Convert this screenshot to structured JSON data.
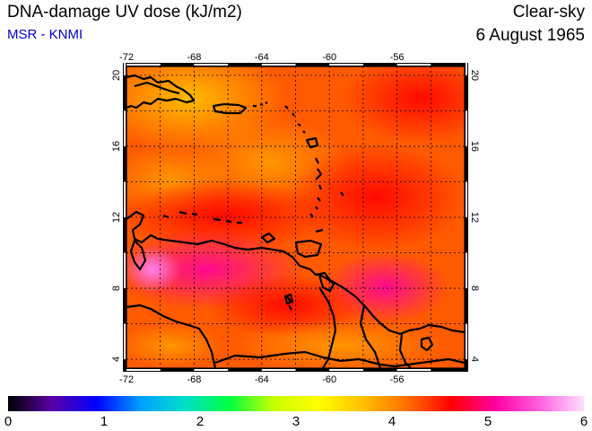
{
  "header": {
    "title": "DNA-damage UV dose (kJ/m2)",
    "subtitle": "MSR - KNMI",
    "condition": "Clear-sky",
    "date": "6 August 1965"
  },
  "map": {
    "lon_ticks": [
      "-72",
      "-68",
      "-64",
      "-60",
      "-56"
    ],
    "lat_ticks": [
      "20",
      "16",
      "12",
      "8",
      "4"
    ],
    "lon_values": [
      -72,
      -68,
      -64,
      -60,
      -56
    ],
    "lat_values": [
      20,
      16,
      12,
      8,
      4
    ],
    "lon_range": [
      -72,
      -52
    ],
    "lat_range": [
      3.5,
      20.5
    ],
    "gridlines": true,
    "land_outline_color": "#000000"
  },
  "colorbar": {
    "ticks": [
      "0",
      "1",
      "2",
      "3",
      "4",
      "5",
      "6"
    ],
    "range": [
      0,
      6
    ],
    "colors": [
      "#000000",
      "#5a00a8",
      "#0000ff",
      "#00a0ff",
      "#00e0c8",
      "#00ff40",
      "#c8ff00",
      "#ffff00",
      "#ffc000",
      "#ff7000",
      "#ff0000",
      "#ff00a0",
      "#ff60e0",
      "#ffe0ff"
    ]
  }
}
